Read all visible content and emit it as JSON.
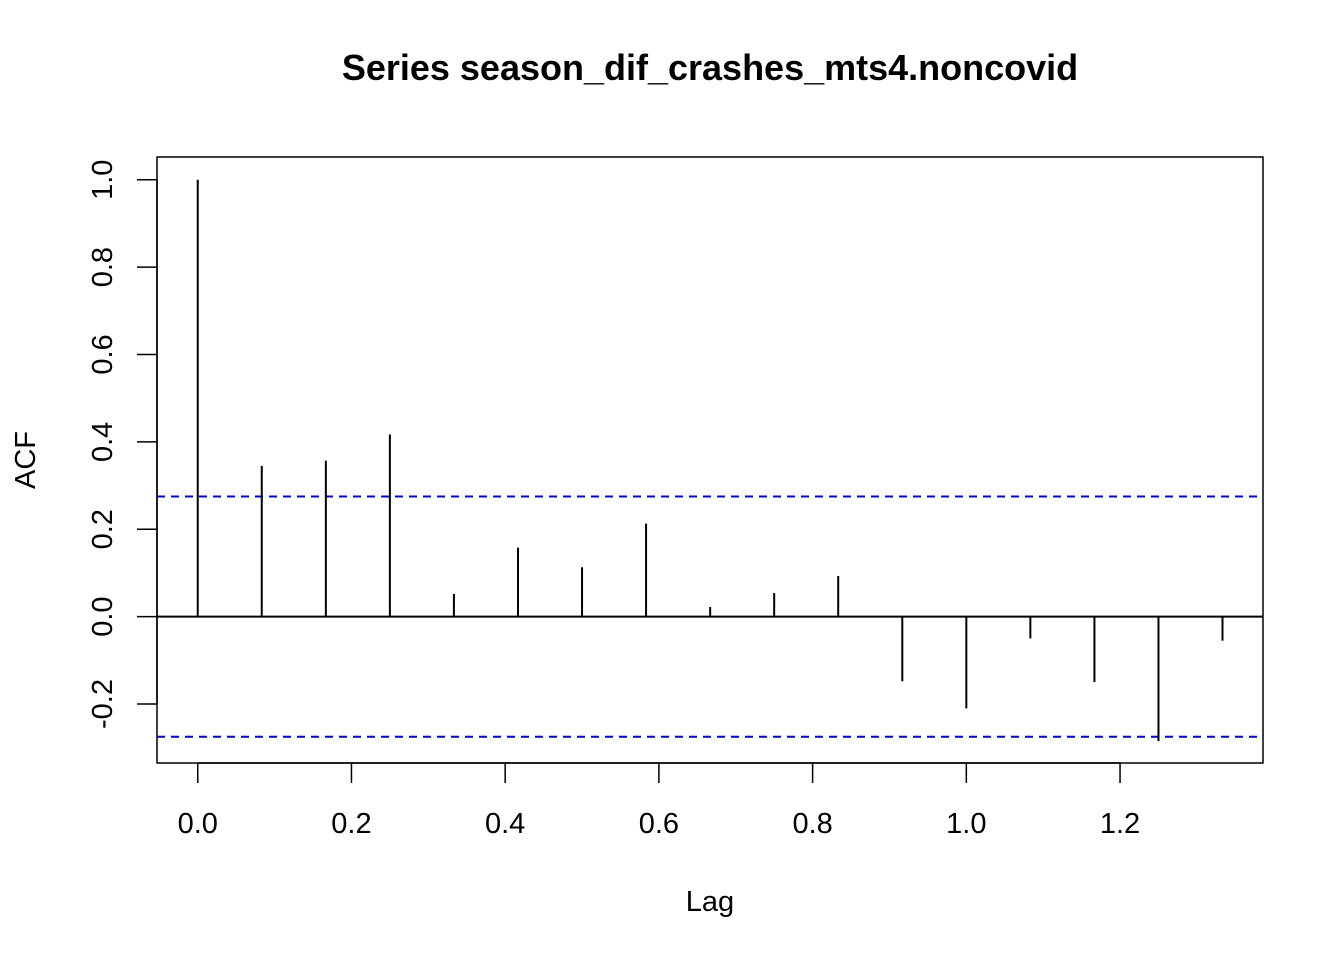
{
  "chart_data": {
    "type": "bar",
    "title": "Series  season_dif_crashes_mts4.noncovid",
    "xlabel": "Lag",
    "ylabel": "ACF",
    "xlim": [
      -0.053,
      1.386
    ],
    "ylim": [
      -0.335,
      1.052
    ],
    "x_ticks": [
      0.0,
      0.2,
      0.4,
      0.6,
      0.8,
      1.0,
      1.2
    ],
    "x_tick_labels": [
      "0.0",
      "0.2",
      "0.4",
      "0.6",
      "0.8",
      "1.0",
      "1.2"
    ],
    "y_ticks": [
      -0.2,
      0.0,
      0.2,
      0.4,
      0.6,
      0.8,
      1.0
    ],
    "y_tick_labels": [
      "-0.2",
      "0.0",
      "0.2",
      "0.4",
      "0.6",
      "0.8",
      "1.0"
    ],
    "lags": [
      0.0,
      0.0833,
      0.1667,
      0.25,
      0.3333,
      0.4167,
      0.5,
      0.5833,
      0.6667,
      0.75,
      0.8333,
      0.9167,
      1.0,
      1.0833,
      1.1667,
      1.25,
      1.3333
    ],
    "acf": [
      1.0,
      0.345,
      0.357,
      0.417,
      0.052,
      0.158,
      0.113,
      0.213,
      0.022,
      0.054,
      0.093,
      -0.148,
      -0.21,
      -0.05,
      -0.15,
      -0.285,
      -0.055
    ],
    "confidence_bound": 0.275,
    "colors": {
      "bars": "#000000",
      "confidence": "#0000cc",
      "axes": "#000000"
    }
  }
}
